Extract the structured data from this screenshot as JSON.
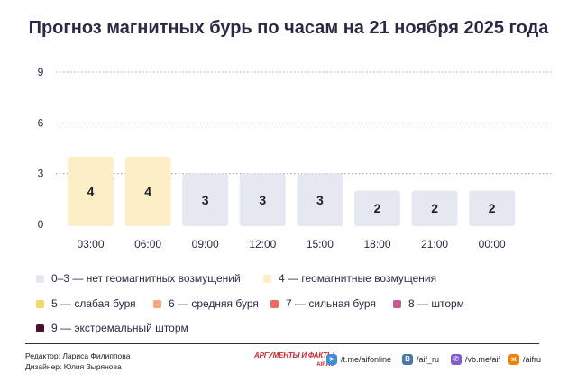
{
  "title": "Прогноз магнитных бурь по часам на 21 ноября 2025 года",
  "chart_data": {
    "type": "bar",
    "categories": [
      "03:00",
      "06:00",
      "09:00",
      "12:00",
      "15:00",
      "18:00",
      "21:00",
      "00:00"
    ],
    "values": [
      4,
      4,
      3,
      3,
      3,
      2,
      2,
      2
    ],
    "yticks": [
      0,
      3,
      6,
      9
    ],
    "ylim": [
      0,
      9
    ],
    "grid": true,
    "colors": {
      "0-3": "#e6e8f1",
      "4": "#fcefc7"
    }
  },
  "legend": [
    {
      "label": "0–3 — нет геомагнитных возмущений",
      "color": "#e6e8f1"
    },
    {
      "label": "4 — геомагнитные возмущения",
      "color": "#fcefc7"
    },
    {
      "label": "5 — слабая буря",
      "color": "#f6d56a"
    },
    {
      "label": "6 — средняя буря",
      "color": "#f4a77a"
    },
    {
      "label": "7 — сильная буря",
      "color": "#ef6b5e"
    },
    {
      "label": "8 — шторм",
      "color": "#c95a8c"
    },
    {
      "label": "9 — экстремальный шторм",
      "color": "#4a1030"
    }
  ],
  "credits": {
    "editor": "Редактор: Лариса Филиппова",
    "designer": "Дизайнер: Юлия Зырянова"
  },
  "logo": {
    "name": "АРГУМЕНТЫ И ФАКТЫ",
    "site": "AIF.RU"
  },
  "social": [
    {
      "label": "/t.me/aifonline",
      "icon": "telegram-icon",
      "color": "#3f8fd6",
      "glyph": "➤"
    },
    {
      "label": "/aif_ru",
      "icon": "vk-icon",
      "color": "#4a76a8",
      "glyph": "B"
    },
    {
      "label": "/vb.me/aif",
      "icon": "viber-icon",
      "color": "#7d5fc7",
      "glyph": "✆"
    },
    {
      "label": "/aifru",
      "icon": "ok-icon",
      "color": "#ee8208",
      "glyph": "ж"
    }
  ]
}
